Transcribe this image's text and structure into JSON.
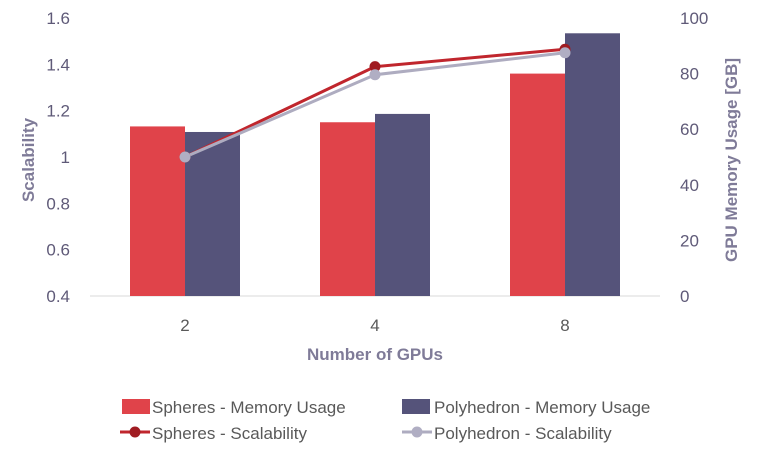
{
  "chart_data": {
    "type": "bar",
    "categories": [
      "2",
      "4",
      "8"
    ],
    "xlabel": "Number of GPUs",
    "y1label": "Scalability",
    "y2label": "GPU Memory Usage [GB]",
    "y1lim": [
      0.4,
      1.6
    ],
    "y2lim": [
      0,
      100
    ],
    "y1ticks": [
      "0.4",
      "0.6",
      "0.8",
      "1",
      "1.2",
      "1.4",
      "1.6"
    ],
    "y2ticks": [
      "0",
      "20",
      "40",
      "60",
      "80",
      "100"
    ],
    "grid": false,
    "legend_position": "bottom",
    "bar_series": [
      {
        "name": "Spheres - Memory Usage",
        "color": "#e0434a",
        "values": [
          61,
          62.5,
          80
        ]
      },
      {
        "name": "Polyhedron - Memory Usage",
        "color": "#55537a",
        "values": [
          59,
          65.5,
          94.5
        ]
      }
    ],
    "line_series": [
      {
        "name": "Spheres - Scalability",
        "color": "#c0262d",
        "marker": "#a01c22",
        "values": [
          1.0,
          1.39,
          1.465
        ]
      },
      {
        "name": "Polyhedron - Scalability",
        "color": "#aeacc0",
        "marker": "#b0aec3",
        "values": [
          1.0,
          1.355,
          1.45
        ]
      }
    ]
  }
}
